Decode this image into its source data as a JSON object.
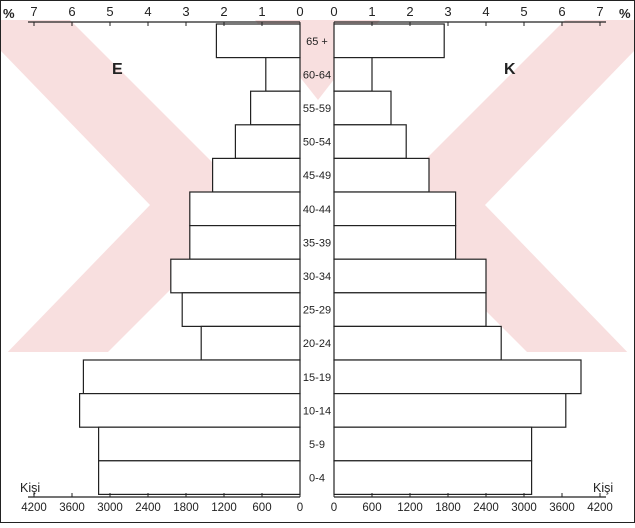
{
  "chart_data": {
    "type": "bar",
    "subtype": "population-pyramid",
    "title": "",
    "percent_symbol": "%",
    "unit_label": "Kişi",
    "left_group": "E",
    "right_group": "K",
    "age_groups": [
      "65 +",
      "60-64",
      "55-59",
      "50-54",
      "45-49",
      "40-44",
      "35-39",
      "30-34",
      "25-29",
      "20-24",
      "15-19",
      "10-14",
      "5-9",
      "0-4"
    ],
    "top_axis_left_labels": [
      "7",
      "6",
      "5",
      "4",
      "3",
      "2",
      "1",
      "0"
    ],
    "top_axis_right_labels": [
      "0",
      "1",
      "2",
      "3",
      "4",
      "5",
      "6",
      "7"
    ],
    "bottom_axis_left_labels": [
      "4200",
      "3600",
      "3000",
      "2400",
      "1800",
      "1200",
      "600",
      "0"
    ],
    "bottom_axis_right_labels": [
      "0",
      "600",
      "1200",
      "1800",
      "2400",
      "3000",
      "3600",
      "4200"
    ],
    "percent_range": [
      0,
      7
    ],
    "series": [
      {
        "name": "E",
        "side": "left",
        "values": [
          2.2,
          0.9,
          1.3,
          1.7,
          2.3,
          2.9,
          2.9,
          3.4,
          3.1,
          2.6,
          5.7,
          5.8,
          5.3,
          5.3
        ]
      },
      {
        "name": "K",
        "side": "right",
        "values": [
          2.9,
          1.0,
          1.5,
          1.9,
          2.5,
          3.2,
          3.2,
          4.0,
          4.0,
          4.4,
          6.5,
          6.1,
          5.2,
          5.2
        ]
      }
    ],
    "grid": false,
    "colors": {
      "bar_fill": "#ffffff",
      "bar_stroke": "#222222",
      "watermark": "#f3c4c4"
    }
  }
}
